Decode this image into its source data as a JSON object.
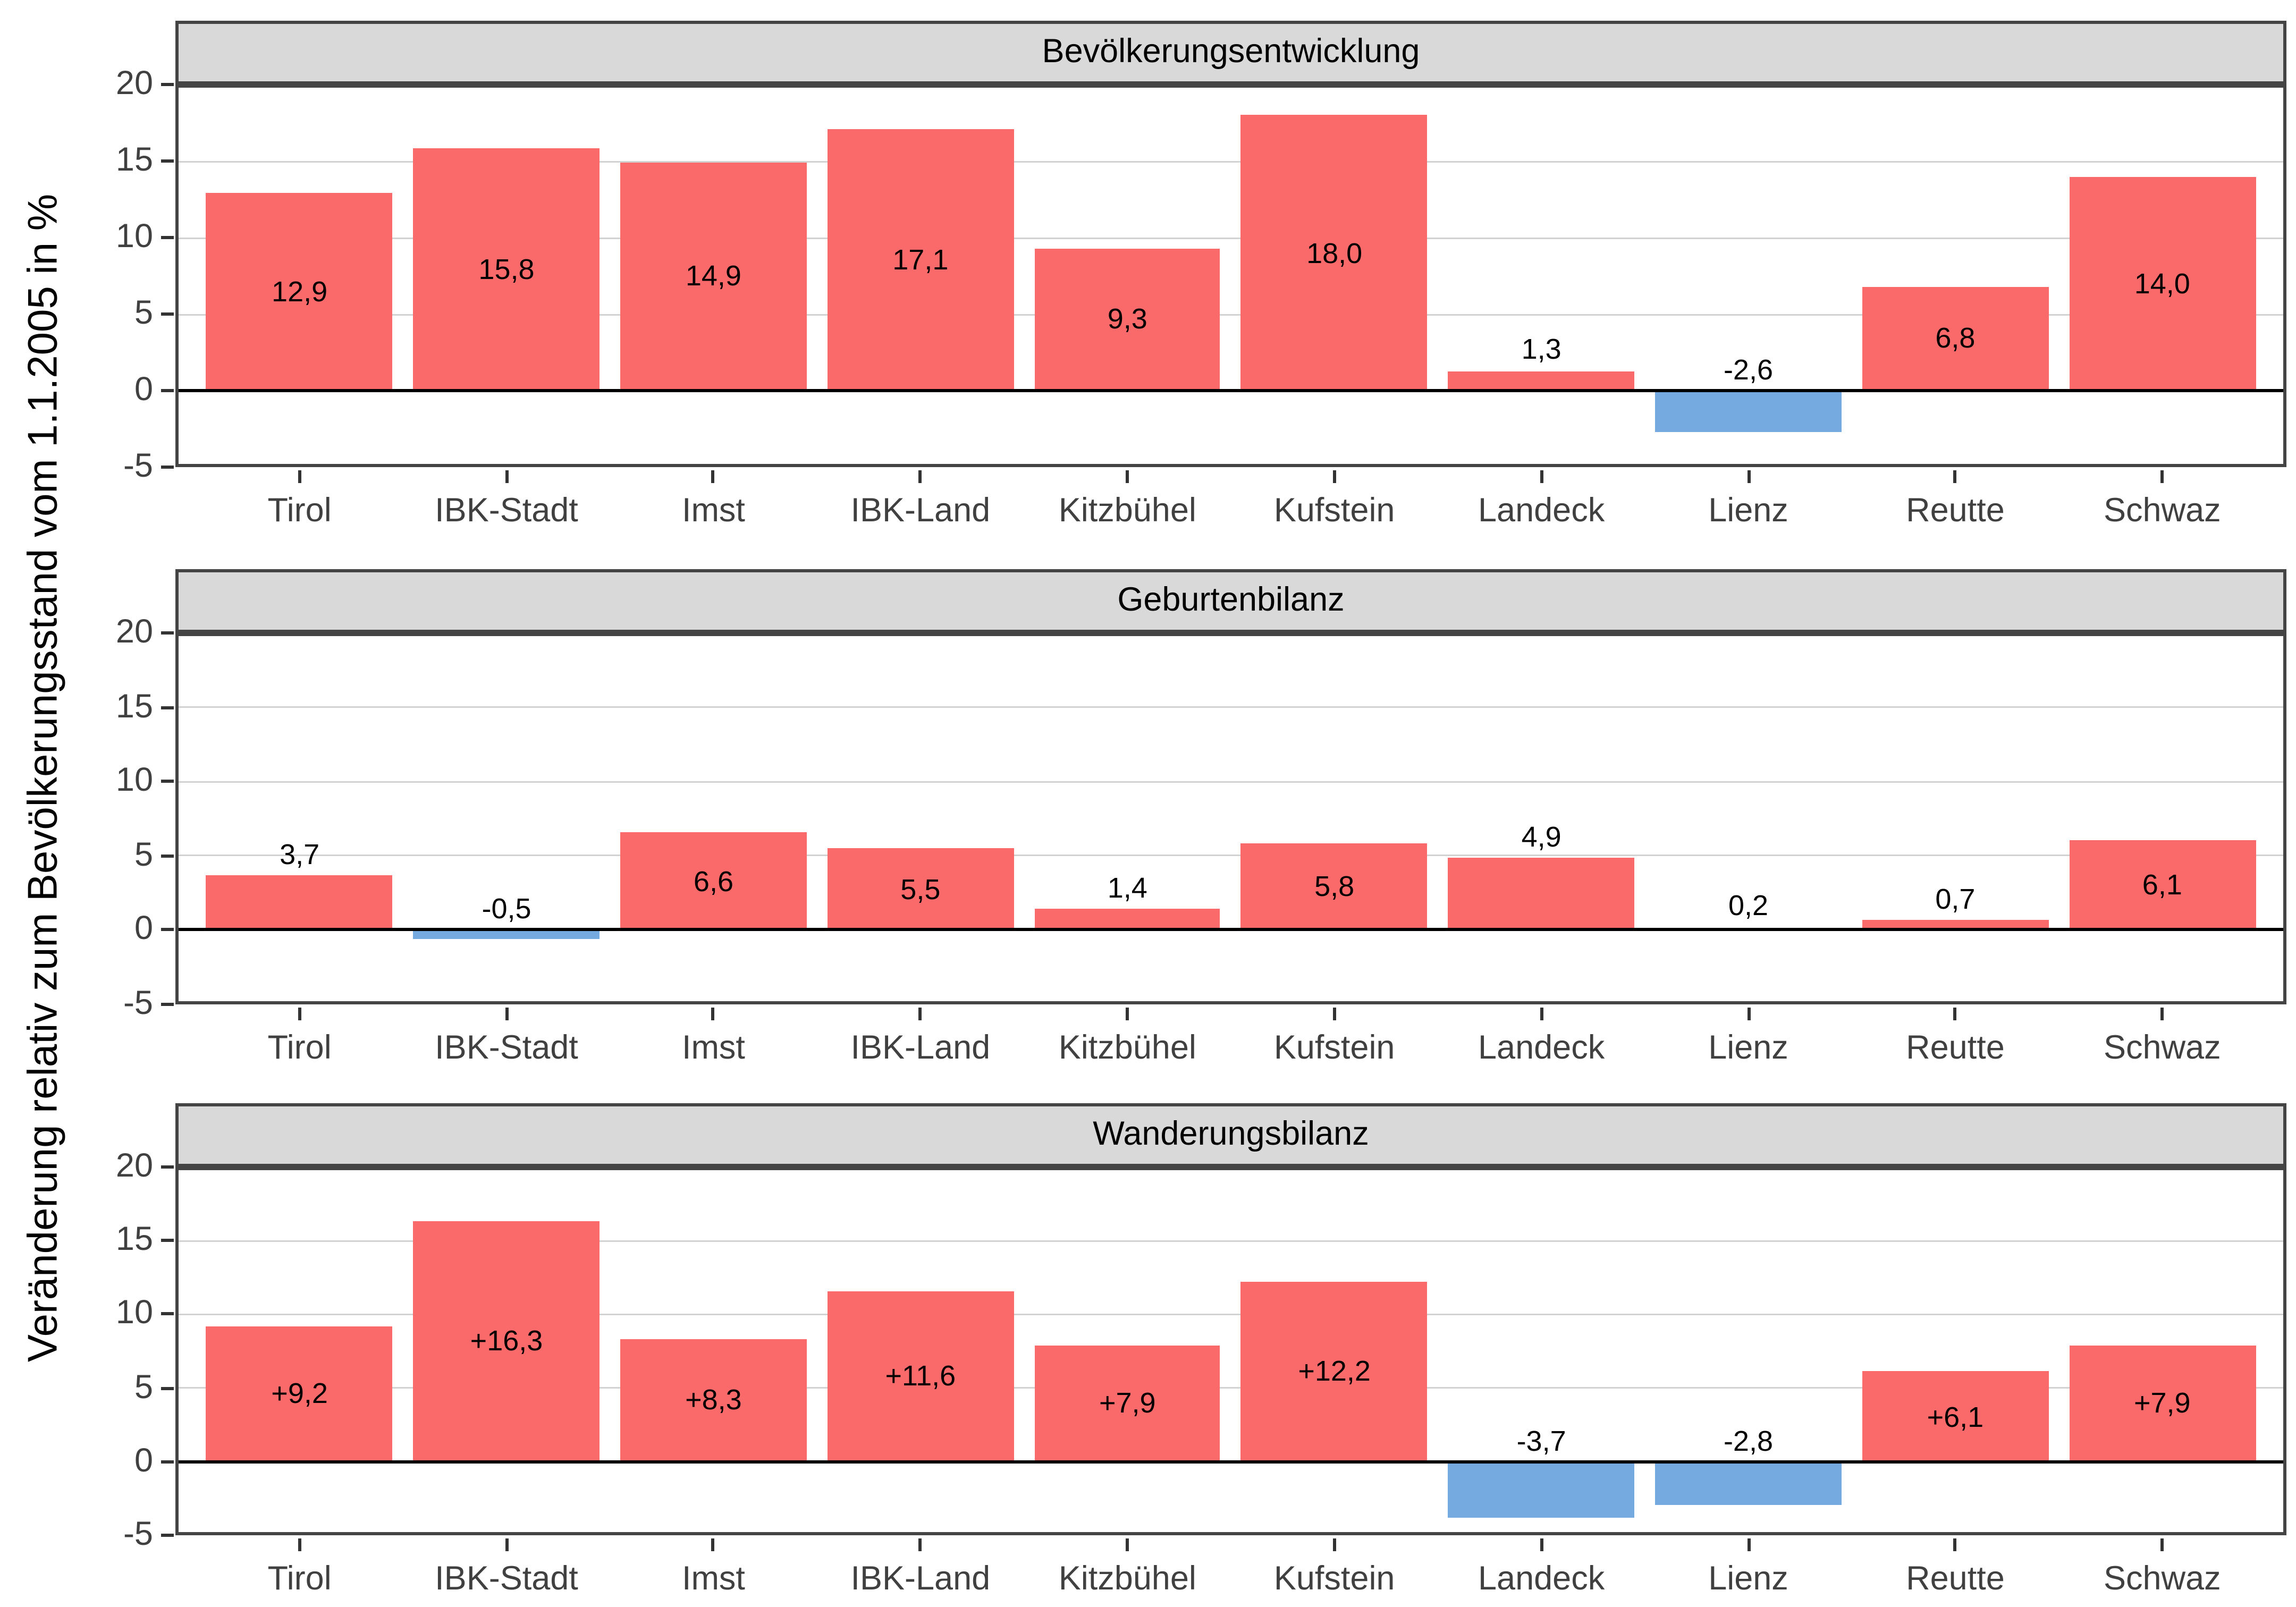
{
  "figure": {
    "y_axis_title": "Veränderung relativ zum Bevölkerungsstand vom 1.1.2005 in %"
  },
  "colors": {
    "positive_bar": "#FB6A6A",
    "negative_bar": "#74AADF",
    "strip_bg": "#D9D9D9",
    "panel_border": "#444444",
    "gridline": "#D2D2D2",
    "zero_line": "#000000",
    "axis_text": "#404040",
    "label_text": "#000000"
  },
  "y_axis": {
    "tick_values": [
      20,
      15,
      10,
      5,
      0,
      -5
    ],
    "tick_labels": [
      "20",
      "15",
      "10",
      "5",
      "0",
      "-5"
    ],
    "gridline_values": [
      20,
      15,
      10,
      5
    ],
    "ylim": [
      -5,
      20
    ]
  },
  "chart_data": [
    {
      "type": "bar",
      "title": "Bevölkerungsentwicklung",
      "categories": [
        "Tirol",
        "IBK-Stadt",
        "Imst",
        "IBK-Land",
        "Kitzbühel",
        "Kufstein",
        "Landeck",
        "Lienz",
        "Reutte",
        "Schwaz"
      ],
      "values": [
        12.9,
        15.8,
        14.9,
        17.1,
        9.3,
        18.0,
        1.3,
        -2.6,
        6.8,
        14.0
      ],
      "value_labels": [
        "12,9",
        "15,8",
        "14,9",
        "17,1",
        "9,3",
        "18,0",
        "1,3",
        "-2,6",
        "6,8",
        "14,0"
      ],
      "ylim": [
        -5,
        20
      ],
      "grid": "horizontal-major",
      "legend": "none"
    },
    {
      "type": "bar",
      "title": "Geburtenbilanz",
      "categories": [
        "Tirol",
        "IBK-Stadt",
        "Imst",
        "IBK-Land",
        "Kitzbühel",
        "Kufstein",
        "Landeck",
        "Lienz",
        "Reutte",
        "Schwaz"
      ],
      "values": [
        3.7,
        -0.5,
        6.6,
        5.5,
        1.4,
        5.8,
        4.9,
        0.2,
        0.7,
        6.1
      ],
      "value_labels": [
        "3,7",
        "-0,5",
        "6,6",
        "5,5",
        "1,4",
        "5,8",
        "4,9",
        "0,2",
        "0,7",
        "6,1"
      ],
      "ylim": [
        -5,
        20
      ],
      "grid": "horizontal-major",
      "legend": "none"
    },
    {
      "type": "bar",
      "title": "Wanderungsbilanz",
      "categories": [
        "Tirol",
        "IBK-Stadt",
        "Imst",
        "IBK-Land",
        "Kitzbühel",
        "Kufstein",
        "Landeck",
        "Lienz",
        "Reutte",
        "Schwaz"
      ],
      "values": [
        9.2,
        16.3,
        8.3,
        11.6,
        7.9,
        12.2,
        -3.7,
        -2.8,
        6.1,
        7.9
      ],
      "value_labels": [
        "+9,2",
        "+16,3",
        "+8,3",
        "+11,6",
        "+7,9",
        "+12,2",
        "-3,7",
        "-2,8",
        "+6,1",
        "+7,9"
      ],
      "ylim": [
        -5,
        20
      ],
      "grid": "horizontal-major",
      "legend": "none"
    }
  ]
}
